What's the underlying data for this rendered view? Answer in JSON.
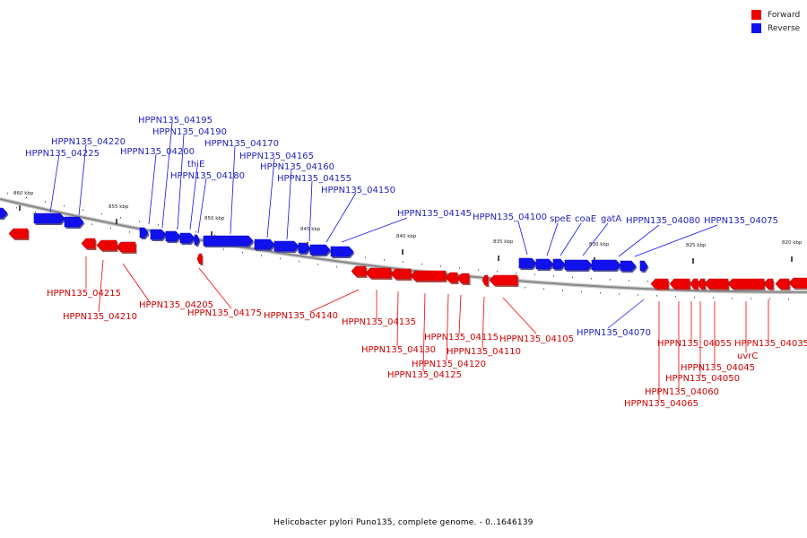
{
  "legend": {
    "forward_label": "Forward",
    "reverse_label": "Reverse",
    "forward_color": "#ee0000",
    "reverse_color": "#1111ee"
  },
  "colors": {
    "forward_label_text": "#cc0000",
    "reverse_label_text": "#2222bb",
    "backbone": "#888888"
  },
  "footer": "Helicobacter pylori Puno135, complete genome. - 0..1646139",
  "kbp_marks": [
    "860 kbp",
    "855 kbp",
    "850 kbp",
    "845 kbp",
    "840 kbp",
    "835 kbp",
    "830 kbp",
    "825 kbp",
    "820 kbp"
  ],
  "reverse_genes": [
    "HPPN135_04225",
    "HPPN135_04220",
    "HPPN135_04200",
    "HPPN135_04195",
    "HPPN135_04190",
    "thiE",
    "HPPN135_04180",
    "HPPN135_04170",
    "HPPN135_04165",
    "HPPN135_04160",
    "HPPN135_04155",
    "HPPN135_04150",
    "HPPN135_04145",
    "HPPN135_04100",
    "speE",
    "coaE",
    "gatA",
    "HPPN135_04080",
    "HPPN135_04075",
    "HPPN135_04070"
  ],
  "forward_genes": [
    "HPPN135_04215",
    "HPPN135_04210",
    "HPPN135_04205",
    "HPPN135_04175",
    "HPPN135_04140",
    "HPPN135_04135",
    "HPPN135_04130",
    "HPPN135_04125",
    "HPPN135_04120",
    "HPPN135_04115",
    "HPPN135_04110",
    "HPPN135_04105",
    "HPPN135_04065",
    "HPPN135_04060",
    "HPPN135_04055",
    "HPPN135_04050",
    "HPPN135_04045",
    "uvrC",
    "HPPN135_04035"
  ]
}
